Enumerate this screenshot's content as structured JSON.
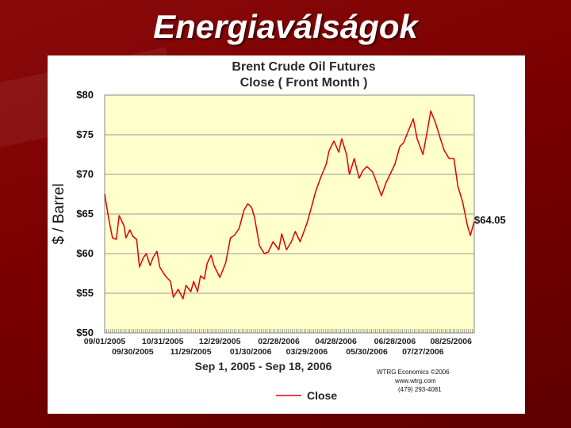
{
  "slide": {
    "title": "Energiaválságok"
  },
  "credit": {
    "line1": "WTRG Economics ©2006",
    "line2": "www.wtrg.com",
    "line3": "(479) 293-4081"
  },
  "colors": {
    "background": "#7a0000",
    "plot_area": "#ffffcc",
    "series": "#e00000"
  },
  "chart_data": {
    "type": "line",
    "title": [
      "Brent Crude Oil Futures",
      "Close ( Front Month )"
    ],
    "xlabel": "Sep 1, 2005 - Sep 18, 2006",
    "ylabel": "$ / Barrel",
    "ylim": [
      50,
      80
    ],
    "yticks": [
      50,
      55,
      60,
      65,
      70,
      75,
      80
    ],
    "ytick_labels": [
      "$50",
      "$55",
      "$60",
      "$65",
      "$70",
      "$75",
      "$80"
    ],
    "xlim": [
      "2005-09-01",
      "2006-09-18"
    ],
    "xticks_row1": [
      {
        "date": "2005-09-01",
        "label": "09/01/2005"
      },
      {
        "date": "2005-10-31",
        "label": "10/31/2005"
      },
      {
        "date": "2005-12-29",
        "label": "12/29/2005"
      },
      {
        "date": "2006-02-28",
        "label": "02/28/2006"
      },
      {
        "date": "2006-04-28",
        "label": "04/28/2006"
      },
      {
        "date": "2006-06-28",
        "label": "06/28/2006"
      },
      {
        "date": "2006-08-25",
        "label": "08/25/2006"
      }
    ],
    "xticks_row2": [
      {
        "date": "2005-09-30",
        "label": "09/30/2005"
      },
      {
        "date": "2005-11-29",
        "label": "11/29/2005"
      },
      {
        "date": "2006-01-30",
        "label": "01/30/2006"
      },
      {
        "date": "2006-03-29",
        "label": "03/29/2006"
      },
      {
        "date": "2006-05-30",
        "label": "05/30/2006"
      },
      {
        "date": "2006-07-27",
        "label": "07/27/2006"
      }
    ],
    "grid": "horizontal",
    "legend_position": "bottom",
    "last_value_label": "$64.05",
    "series": [
      {
        "name": "Close",
        "x": [
          "2005-09-01",
          "2005-09-05",
          "2005-09-09",
          "2005-09-13",
          "2005-09-16",
          "2005-09-21",
          "2005-09-23",
          "2005-09-27",
          "2005-09-30",
          "2005-10-04",
          "2005-10-07",
          "2005-10-11",
          "2005-10-14",
          "2005-10-18",
          "2005-10-21",
          "2005-10-25",
          "2005-10-28",
          "2005-11-01",
          "2005-11-04",
          "2005-11-08",
          "2005-11-11",
          "2005-11-16",
          "2005-11-21",
          "2005-11-24",
          "2005-11-29",
          "2005-12-02",
          "2005-12-06",
          "2005-12-09",
          "2005-12-13",
          "2005-12-16",
          "2005-12-20",
          "2005-12-23",
          "2005-12-29",
          "2006-01-04",
          "2006-01-09",
          "2006-01-13",
          "2006-01-18",
          "2006-01-23",
          "2006-01-27",
          "2006-01-31",
          "2006-02-03",
          "2006-02-08",
          "2006-02-13",
          "2006-02-17",
          "2006-02-22",
          "2006-02-28",
          "2006-03-03",
          "2006-03-08",
          "2006-03-13",
          "2006-03-17",
          "2006-03-22",
          "2006-03-29",
          "2006-04-03",
          "2006-04-07",
          "2006-04-12",
          "2006-04-18",
          "2006-04-21",
          "2006-04-26",
          "2006-05-01",
          "2006-05-04",
          "2006-05-09",
          "2006-05-12",
          "2006-05-17",
          "2006-05-22",
          "2006-05-26",
          "2006-05-30",
          "2006-06-05",
          "2006-06-09",
          "2006-06-14",
          "2006-06-19",
          "2006-06-23",
          "2006-06-28",
          "2006-07-03",
          "2006-07-07",
          "2006-07-12",
          "2006-07-17",
          "2006-07-21",
          "2006-07-27",
          "2006-08-01",
          "2006-08-04",
          "2006-08-09",
          "2006-08-14",
          "2006-08-18",
          "2006-08-23",
          "2006-08-28",
          "2006-09-01",
          "2006-09-06",
          "2006-09-11",
          "2006-09-14",
          "2006-09-18"
        ],
        "y": [
          67.5,
          64.5,
          62.0,
          61.8,
          64.8,
          63.5,
          62.0,
          63.0,
          62.2,
          61.8,
          58.3,
          59.5,
          60.0,
          58.5,
          59.5,
          60.3,
          58.3,
          57.5,
          57.0,
          56.5,
          54.5,
          55.5,
          54.3,
          56.0,
          55.2,
          56.5,
          55.2,
          57.2,
          56.8,
          58.8,
          59.8,
          58.5,
          57.0,
          58.8,
          62.0,
          62.3,
          63.2,
          65.5,
          66.3,
          65.8,
          64.5,
          61.0,
          60.0,
          60.2,
          61.5,
          60.5,
          62.5,
          60.5,
          61.5,
          62.8,
          61.5,
          63.8,
          66.0,
          67.8,
          69.5,
          71.3,
          73.0,
          74.2,
          72.8,
          74.5,
          72.5,
          70.0,
          72.0,
          69.5,
          70.5,
          71.0,
          70.3,
          69.0,
          67.3,
          69.0,
          70.0,
          71.3,
          73.5,
          74.0,
          75.5,
          77.0,
          74.5,
          72.5,
          75.8,
          78.0,
          76.5,
          74.5,
          73.0,
          72.0,
          72.0,
          68.5,
          66.5,
          63.5,
          62.3,
          64.05
        ]
      }
    ]
  }
}
